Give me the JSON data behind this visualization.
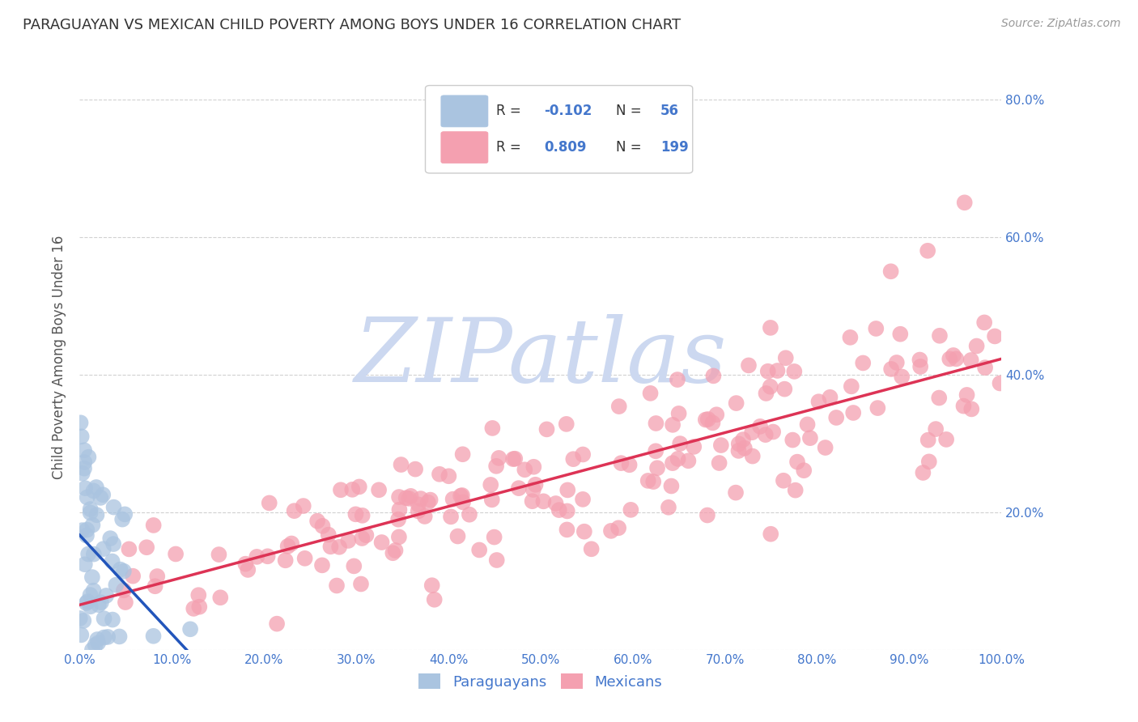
{
  "title": "PARAGUAYAN VS MEXICAN CHILD POVERTY AMONG BOYS UNDER 16 CORRELATION CHART",
  "source": "Source: ZipAtlas.com",
  "ylabel": "Child Poverty Among Boys Under 16",
  "xlabel": "",
  "watermark_text": "ZIPatlas",
  "bg_color": "#ffffff",
  "plot_bg_color": "#ffffff",
  "grid_color": "#cccccc",
  "title_color": "#333333",
  "source_color": "#999999",
  "axis_label_color": "#555555",
  "tick_label_color": "#4477cc",
  "paraguayan_color": "#aac4e0",
  "mexican_color": "#f4a0b0",
  "paraguayan_line_color": "#2255bb",
  "paraguayan_dash_color": "#aaaacc",
  "mexican_line_color": "#dd3355",
  "legend_box_color": "#ddddee",
  "legend_r_label_color": "#333333",
  "legend_val_color": "#4477cc",
  "paraguayan_r": -0.102,
  "paraguayan_n": 56,
  "mexican_r": 0.809,
  "mexican_n": 199,
  "xlim": [
    0.0,
    1.0
  ],
  "ylim": [
    0.0,
    0.85
  ],
  "xtick_vals": [
    0.0,
    0.1,
    0.2,
    0.3,
    0.4,
    0.5,
    0.6,
    0.7,
    0.8,
    0.9,
    1.0
  ],
  "ytick_vals": [
    0.0,
    0.2,
    0.4,
    0.6,
    0.8
  ],
  "right_ytick_vals": [
    0.2,
    0.4,
    0.6,
    0.8
  ],
  "right_ytick_labels": [
    "20.0%",
    "40.0%",
    "60.0%",
    "80.0%"
  ],
  "watermark_color": "#ccd8f0",
  "par_scatter_seed": 42,
  "mex_scatter_seed": 7
}
